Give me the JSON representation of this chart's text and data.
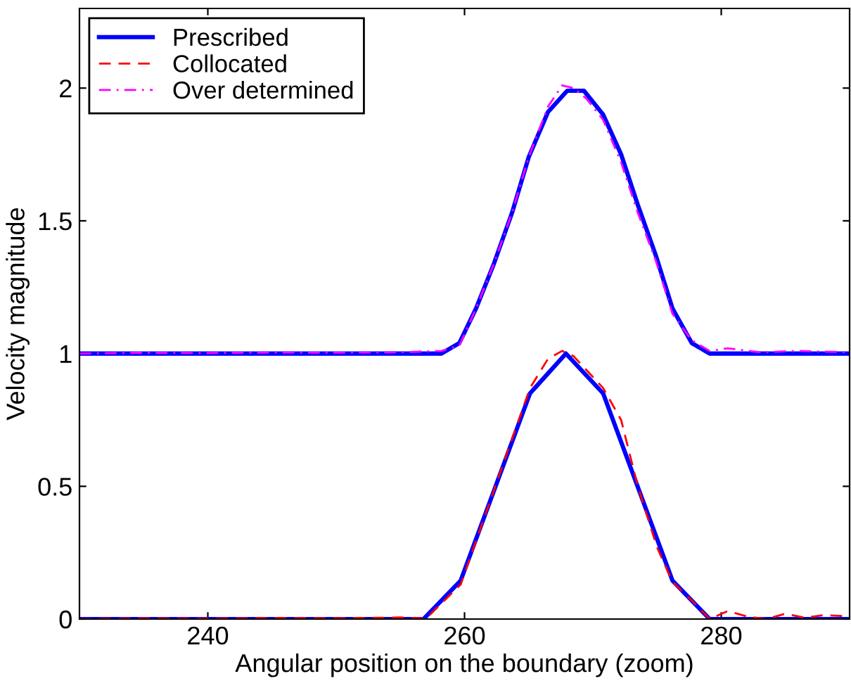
{
  "chart_data": {
    "type": "line",
    "xlabel": "Angular position on the boundary (zoom)",
    "ylabel": "Velocity magnitude",
    "xlim": [
      230,
      290
    ],
    "ylim": [
      0,
      2.3
    ],
    "xticks": [
      240,
      260,
      280
    ],
    "yticks": [
      0,
      0.5,
      1,
      1.5,
      2
    ],
    "grid": false,
    "legend": "top left",
    "series": [
      {
        "name": "Prescribed",
        "color": "#0000ff",
        "line_style": "solid",
        "x": [
          230,
          258.2,
          259.6,
          260.9,
          262.3,
          263.7,
          265.0,
          266.5,
          268.0,
          269.3,
          270.8,
          272.2,
          273.5,
          274.9,
          276.2,
          277.7,
          279.1,
          290,
          null,
          230,
          256.8,
          259.7,
          265.1,
          267.9,
          270.8,
          276.2,
          279.1,
          290
        ],
        "values": [
          1.0,
          1.0,
          1.04,
          1.17,
          1.34,
          1.53,
          1.74,
          1.91,
          1.99,
          1.99,
          1.9,
          1.75,
          1.56,
          1.37,
          1.17,
          1.04,
          1.0,
          1.0,
          null,
          0,
          0,
          0.145,
          0.85,
          1.0,
          0.85,
          0.145,
          0,
          0
        ]
      },
      {
        "name": "Collocated",
        "color": "#ff0000",
        "line_style": "dashed",
        "x": [
          230,
          235,
          240,
          245,
          250,
          255,
          257,
          259.7,
          262.4,
          265.1,
          266.5,
          267.6,
          268.5,
          270.8,
          272.2,
          273.5,
          275,
          276.2,
          277.7,
          279.1,
          280.5,
          282,
          283.5,
          285,
          286.5,
          288,
          290
        ],
        "values": [
          0,
          0.003,
          0.002,
          0.004,
          0.003,
          0.006,
          0.002,
          0.13,
          0.5,
          0.87,
          0.98,
          1.01,
          0.99,
          0.87,
          0.75,
          0.5,
          0.27,
          0.14,
          0.07,
          0.0,
          0.03,
          0.01,
          0.0,
          0.02,
          0.005,
          0.015,
          0.01
        ]
      },
      {
        "name": "Over determined",
        "color": "#ff00ff",
        "line_style": "dashdot",
        "x": [
          230,
          235,
          240,
          245,
          250,
          255,
          258.2,
          259.6,
          260.9,
          262.3,
          263.7,
          265,
          266.5,
          267.6,
          268.5,
          269.5,
          270.8,
          272.2,
          273.5,
          274.9,
          276.2,
          277.7,
          279.1,
          280.5,
          283,
          286,
          290
        ],
        "values": [
          1.0,
          1.003,
          1.002,
          1.004,
          1.003,
          1.005,
          1.01,
          1.03,
          1.17,
          1.34,
          1.53,
          1.74,
          1.93,
          2.01,
          2.0,
          1.96,
          1.88,
          1.72,
          1.53,
          1.35,
          1.15,
          1.05,
          1.01,
          1.02,
          1.005,
          1.01,
          1.005
        ]
      }
    ]
  }
}
